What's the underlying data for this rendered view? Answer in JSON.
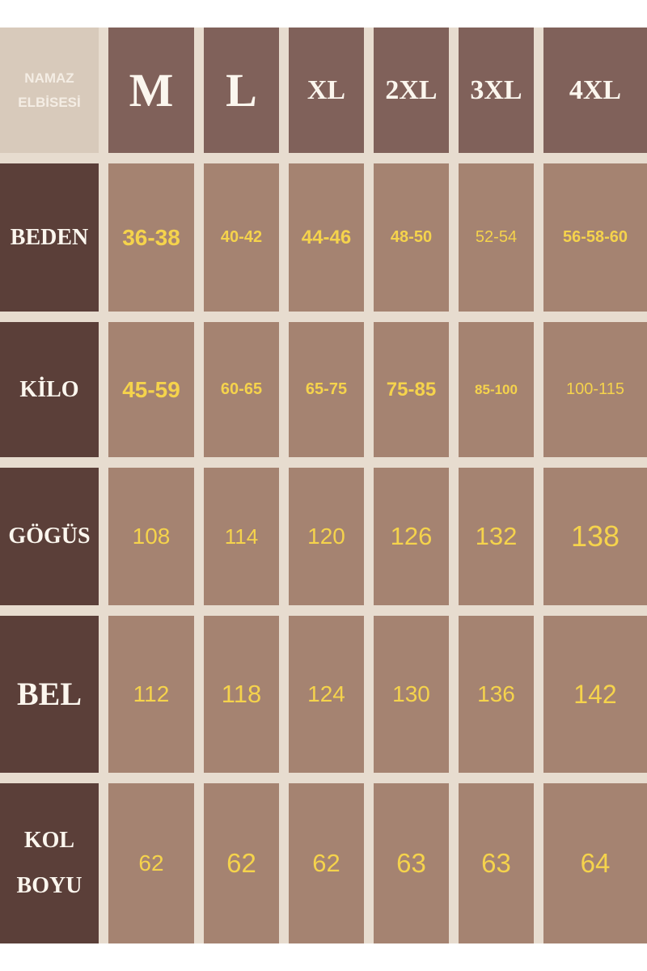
{
  "corner": {
    "line1": "NAMAZ",
    "line2": "ELBİSESİ"
  },
  "sizes": [
    "M",
    "L",
    "XL",
    "2XL",
    "3XL",
    "4XL"
  ],
  "rows": [
    {
      "label": "BEDEN",
      "values": [
        "36-38",
        "40-42",
        "44-46",
        "48-50",
        "52-54",
        "56-58-60"
      ]
    },
    {
      "label": "KİLO",
      "values": [
        "45-59",
        "60-65",
        "65-75",
        "75-85",
        "85-100",
        "100-115"
      ]
    },
    {
      "label": "GÖGÜS",
      "values": [
        "108",
        "114",
        "120",
        "126",
        "132",
        "138"
      ]
    },
    {
      "label": "BEL",
      "values": [
        "112",
        "118",
        "124",
        "130",
        "136",
        "142"
      ]
    },
    {
      "label_line1": "KOL",
      "label_line2": "BOYU",
      "values": [
        "62",
        "62",
        "62",
        "63",
        "63",
        "64"
      ]
    }
  ],
  "colors": {
    "background": "#e7dccf",
    "header": "#80615a",
    "row_header": "#5b3f39",
    "cell": "#a58371",
    "value_text": "#f5d34c"
  }
}
